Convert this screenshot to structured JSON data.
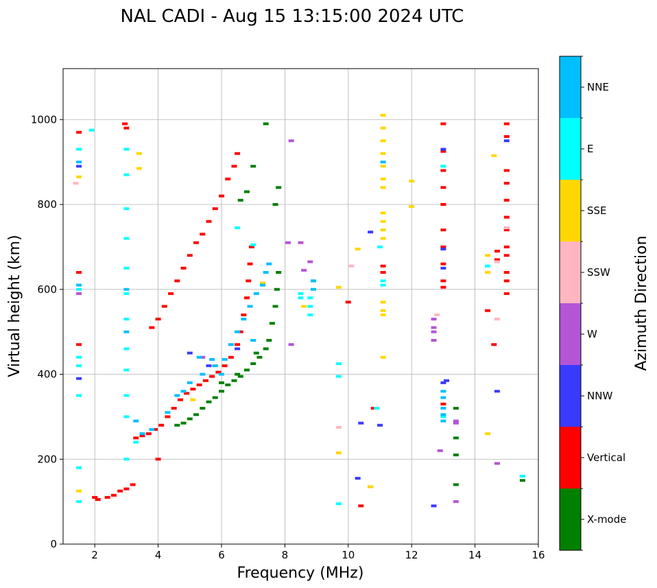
{
  "chart_data": {
    "type": "scatter",
    "title": "NAL CADI - Aug 15 13:15:00 2024 UTC",
    "xlabel": "Frequency (MHz)",
    "ylabel": "Virtual height (km)",
    "xlim": [
      1.0,
      16.0
    ],
    "ylim": [
      0,
      1120
    ],
    "xticks": [
      2,
      4,
      6,
      8,
      10,
      12,
      14,
      16
    ],
    "yticks": [
      0,
      200,
      400,
      600,
      800,
      1000
    ],
    "grid": true,
    "colorbar": {
      "label": "Azimuth Direction",
      "categories": [
        {
          "name": "X-mode",
          "color": "#008000"
        },
        {
          "name": "Vertical",
          "color": "#ff0000"
        },
        {
          "name": "NNW",
          "color": "#3a3aff"
        },
        {
          "name": "W",
          "color": "#b455d6"
        },
        {
          "name": "SSW",
          "color": "#ffb6c1"
        },
        {
          "name": "SSE",
          "color": "#ffd700"
        },
        {
          "name": "E",
          "color": "#00ffff"
        },
        {
          "name": "NNE",
          "color": "#00bfff"
        }
      ]
    },
    "traces": [
      {
        "category": "X-mode",
        "points": [
          [
            4.6,
            280
          ],
          [
            4.8,
            285
          ],
          [
            5.0,
            295
          ],
          [
            5.2,
            305
          ],
          [
            5.4,
            320
          ],
          [
            5.6,
            335
          ],
          [
            5.8,
            345
          ],
          [
            6.0,
            360
          ],
          [
            6.2,
            375
          ],
          [
            6.4,
            385
          ],
          [
            6.6,
            395
          ],
          [
            6.8,
            410
          ],
          [
            7.0,
            425
          ],
          [
            7.2,
            440
          ],
          [
            7.4,
            460
          ],
          [
            7.5,
            480
          ],
          [
            7.6,
            520
          ],
          [
            7.7,
            560
          ],
          [
            7.75,
            600
          ],
          [
            7.8,
            640
          ],
          [
            7.7,
            800
          ],
          [
            7.8,
            840
          ],
          [
            7.4,
            990
          ],
          [
            7.0,
            890
          ],
          [
            6.6,
            810
          ],
          [
            6.8,
            830
          ],
          [
            13.4,
            140
          ],
          [
            13.4,
            210
          ],
          [
            13.4,
            250
          ],
          [
            13.4,
            320
          ],
          [
            15.5,
            150
          ],
          [
            15.5,
            160
          ],
          [
            15.0,
            880
          ],
          [
            6.0,
            380
          ],
          [
            6.5,
            400
          ],
          [
            7.1,
            450
          ]
        ]
      },
      {
        "category": "Vertical",
        "points": [
          [
            2.0,
            110
          ],
          [
            2.1,
            105
          ],
          [
            2.4,
            110
          ],
          [
            2.6,
            115
          ],
          [
            2.8,
            125
          ],
          [
            3.0,
            130
          ],
          [
            3.2,
            140
          ],
          [
            3.3,
            250
          ],
          [
            3.5,
            255
          ],
          [
            3.7,
            260
          ],
          [
            3.9,
            270
          ],
          [
            4.1,
            280
          ],
          [
            4.3,
            300
          ],
          [
            4.5,
            320
          ],
          [
            4.7,
            340
          ],
          [
            4.9,
            355
          ],
          [
            5.1,
            365
          ],
          [
            5.3,
            375
          ],
          [
            5.5,
            385
          ],
          [
            5.7,
            395
          ],
          [
            5.9,
            405
          ],
          [
            6.1,
            420
          ],
          [
            6.3,
            440
          ],
          [
            6.5,
            470
          ],
          [
            6.6,
            500
          ],
          [
            6.7,
            540
          ],
          [
            6.8,
            580
          ],
          [
            6.85,
            620
          ],
          [
            6.9,
            660
          ],
          [
            6.95,
            700
          ],
          [
            3.8,
            510
          ],
          [
            4.0,
            530
          ],
          [
            4.2,
            560
          ],
          [
            4.4,
            590
          ],
          [
            4.6,
            620
          ],
          [
            4.8,
            650
          ],
          [
            5.0,
            680
          ],
          [
            5.2,
            710
          ],
          [
            5.4,
            730
          ],
          [
            5.6,
            760
          ],
          [
            5.8,
            790
          ],
          [
            6.0,
            820
          ],
          [
            6.2,
            860
          ],
          [
            6.4,
            890
          ],
          [
            6.5,
            920
          ],
          [
            2.95,
            990
          ],
          [
            3.0,
            980
          ],
          [
            1.5,
            970
          ],
          [
            1.5,
            640
          ],
          [
            1.5,
            470
          ],
          [
            10.0,
            570
          ],
          [
            10.8,
            320
          ],
          [
            10.4,
            90
          ],
          [
            14.6,
            470
          ],
          [
            14.4,
            550
          ],
          [
            11.1,
            640
          ],
          [
            11.1,
            655
          ],
          [
            4.0,
            200
          ],
          [
            13.0,
            990
          ],
          [
            13.0,
            925
          ],
          [
            13.0,
            880
          ],
          [
            13.0,
            840
          ],
          [
            13.0,
            800
          ],
          [
            13.0,
            740
          ],
          [
            13.0,
            700
          ],
          [
            13.0,
            660
          ],
          [
            13.0,
            620
          ],
          [
            13.0,
            605
          ],
          [
            13.0,
            330
          ],
          [
            15.0,
            990
          ],
          [
            15.0,
            960
          ],
          [
            15.0,
            880
          ],
          [
            15.0,
            850
          ],
          [
            15.0,
            810
          ],
          [
            15.0,
            770
          ],
          [
            15.0,
            740
          ],
          [
            15.0,
            700
          ],
          [
            15.0,
            680
          ],
          [
            15.0,
            640
          ],
          [
            15.0,
            620
          ],
          [
            15.0,
            590
          ],
          [
            14.7,
            690
          ],
          [
            14.7,
            670
          ],
          [
            10.7,
            135
          ]
        ]
      },
      {
        "category": "NNW",
        "points": [
          [
            5.0,
            450
          ],
          [
            6.5,
            460
          ],
          [
            12.7,
            90
          ],
          [
            14.7,
            360
          ],
          [
            10.4,
            285
          ],
          [
            11.0,
            280
          ],
          [
            10.3,
            155
          ],
          [
            10.7,
            735
          ],
          [
            13.0,
            930
          ],
          [
            13.0,
            695
          ],
          [
            13.0,
            650
          ],
          [
            13.0,
            380
          ],
          [
            13.1,
            385
          ],
          [
            15.0,
            950
          ],
          [
            1.5,
            390
          ],
          [
            1.5,
            890
          ],
          [
            5.6,
            420
          ]
        ]
      },
      {
        "category": "W",
        "points": [
          [
            8.2,
            950
          ],
          [
            8.1,
            710
          ],
          [
            8.5,
            710
          ],
          [
            8.2,
            470
          ],
          [
            8.6,
            645
          ],
          [
            8.9,
            620
          ],
          [
            8.8,
            665
          ],
          [
            12.7,
            480
          ],
          [
            12.7,
            500
          ],
          [
            12.7,
            510
          ],
          [
            12.7,
            530
          ],
          [
            13.4,
            290
          ],
          [
            13.4,
            285
          ],
          [
            13.4,
            100
          ],
          [
            14.7,
            190
          ],
          [
            12.9,
            220
          ],
          [
            1.5,
            590
          ],
          [
            15.0,
            745
          ],
          [
            5.4,
            440
          ]
        ]
      },
      {
        "category": "SSW",
        "points": [
          [
            10.1,
            655
          ],
          [
            9.7,
            275
          ],
          [
            14.7,
            530
          ],
          [
            14.7,
            665
          ],
          [
            15.0,
            745
          ],
          [
            10.9,
            320
          ],
          [
            12.8,
            540
          ],
          [
            1.4,
            850
          ]
        ]
      },
      {
        "category": "SSE",
        "points": [
          [
            11.1,
            1010
          ],
          [
            11.1,
            980
          ],
          [
            11.1,
            950
          ],
          [
            11.1,
            920
          ],
          [
            11.1,
            890
          ],
          [
            11.1,
            860
          ],
          [
            11.1,
            840
          ],
          [
            11.1,
            780
          ],
          [
            11.1,
            760
          ],
          [
            11.1,
            740
          ],
          [
            11.1,
            720
          ],
          [
            11.1,
            570
          ],
          [
            11.1,
            550
          ],
          [
            11.1,
            540
          ],
          [
            11.1,
            440
          ],
          [
            12.0,
            855
          ],
          [
            12.0,
            795
          ],
          [
            9.7,
            605
          ],
          [
            9.7,
            215
          ],
          [
            10.3,
            695
          ],
          [
            14.4,
            680
          ],
          [
            14.4,
            640
          ],
          [
            14.4,
            260
          ],
          [
            14.6,
            915
          ],
          [
            1.5,
            125
          ],
          [
            1.5,
            865
          ],
          [
            3.4,
            885
          ],
          [
            3.4,
            920
          ],
          [
            7.3,
            615
          ],
          [
            5.1,
            340
          ],
          [
            10.7,
            135
          ],
          [
            8.6,
            560
          ]
        ]
      },
      {
        "category": "E",
        "points": [
          [
            1.9,
            975
          ],
          [
            1.5,
            930
          ],
          [
            1.5,
            600
          ],
          [
            1.5,
            440
          ],
          [
            1.5,
            420
          ],
          [
            1.5,
            350
          ],
          [
            1.5,
            180
          ],
          [
            1.5,
            100
          ],
          [
            3.0,
            930
          ],
          [
            3.0,
            870
          ],
          [
            3.0,
            790
          ],
          [
            3.0,
            720
          ],
          [
            3.0,
            650
          ],
          [
            3.0,
            590
          ],
          [
            3.0,
            530
          ],
          [
            3.0,
            460
          ],
          [
            3.0,
            410
          ],
          [
            3.0,
            350
          ],
          [
            3.0,
            300
          ],
          [
            3.0,
            200
          ],
          [
            8.5,
            590
          ],
          [
            8.5,
            580
          ],
          [
            8.8,
            580
          ],
          [
            8.8,
            560
          ],
          [
            8.8,
            540
          ],
          [
            9.7,
            425
          ],
          [
            9.7,
            395
          ],
          [
            9.7,
            95
          ],
          [
            11.0,
            700
          ],
          [
            11.1,
            620
          ],
          [
            11.1,
            610
          ],
          [
            13.0,
            890
          ],
          [
            13.0,
            300
          ],
          [
            14.4,
            655
          ],
          [
            15.5,
            160
          ],
          [
            6.5,
            745
          ],
          [
            7.0,
            705
          ],
          [
            10.9,
            320
          ],
          [
            3.3,
            240
          ]
        ]
      },
      {
        "category": "NNE",
        "points": [
          [
            3.3,
            290
          ],
          [
            3.5,
            260
          ],
          [
            3.8,
            270
          ],
          [
            4.3,
            310
          ],
          [
            4.6,
            350
          ],
          [
            5.0,
            380
          ],
          [
            5.4,
            400
          ],
          [
            5.8,
            420
          ],
          [
            6.1,
            435
          ],
          [
            6.3,
            470
          ],
          [
            6.5,
            500
          ],
          [
            6.7,
            530
          ],
          [
            6.9,
            560
          ],
          [
            7.1,
            590
          ],
          [
            7.3,
            610
          ],
          [
            7.4,
            640
          ],
          [
            7.5,
            660
          ],
          [
            5.3,
            440
          ],
          [
            5.7,
            435
          ],
          [
            4.8,
            360
          ],
          [
            6.0,
            400
          ],
          [
            13.0,
            360
          ],
          [
            13.0,
            345
          ],
          [
            13.0,
            320
          ],
          [
            13.0,
            305
          ],
          [
            13.0,
            290
          ],
          [
            1.5,
            900
          ],
          [
            1.5,
            610
          ],
          [
            3.0,
            600
          ],
          [
            3.0,
            500
          ],
          [
            8.9,
            620
          ],
          [
            8.9,
            600
          ],
          [
            11.1,
            900
          ],
          [
            7.0,
            480
          ]
        ]
      }
    ]
  }
}
